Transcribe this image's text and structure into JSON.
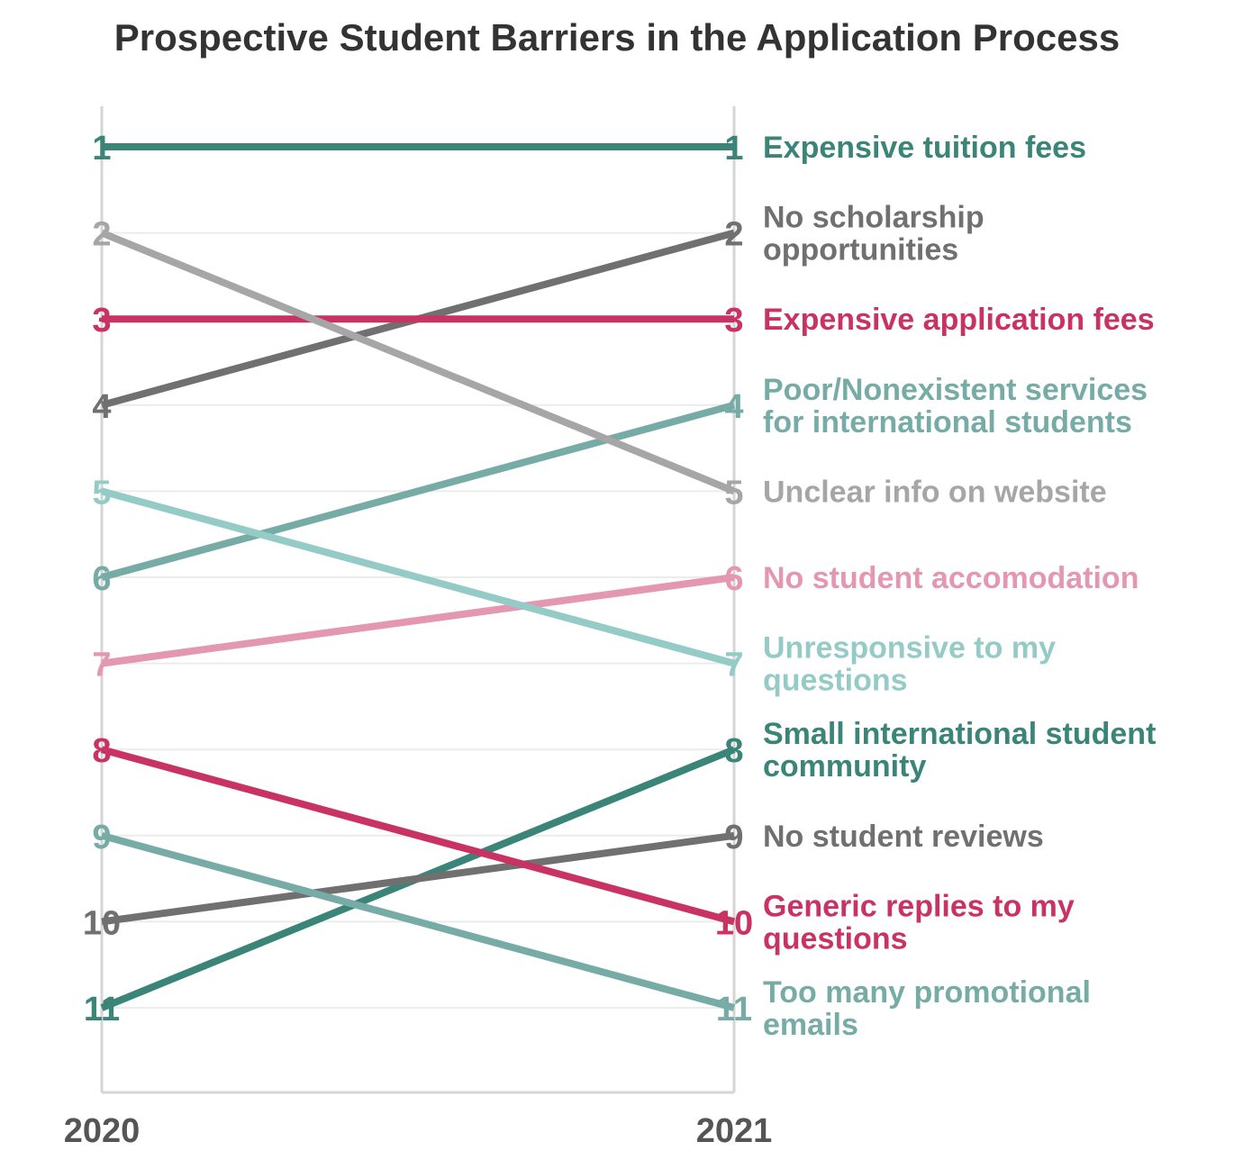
{
  "chart_data": {
    "type": "line",
    "title": "Prospective Student Barriers in the Application Process",
    "x": [
      "2020",
      "2021"
    ],
    "ylim": [
      1,
      11
    ],
    "y_reversed": true,
    "grid": true,
    "series": [
      {
        "name": "Expensive tuition fees",
        "label_lines": [
          "Expensive tuition fees"
        ],
        "values": [
          1,
          1
        ],
        "color": "#3a8478"
      },
      {
        "name": "No scholarship opportunities",
        "label_lines": [
          "No scholarship",
          "opportunities"
        ],
        "values": [
          4,
          2
        ],
        "color": "#707070"
      },
      {
        "name": "Expensive application fees",
        "label_lines": [
          "Expensive application fees"
        ],
        "values": [
          3,
          3
        ],
        "color": "#c93363"
      },
      {
        "name": "Poor/Nonexistent services for international students",
        "label_lines": [
          "Poor/Nonexistent services",
          "for international students"
        ],
        "values": [
          6,
          4
        ],
        "color": "#76aca5"
      },
      {
        "name": "Unclear info on website",
        "label_lines": [
          "Unclear info on website"
        ],
        "values": [
          2,
          5
        ],
        "color": "#a6a6a6"
      },
      {
        "name": "No student accomodation",
        "label_lines": [
          "No student accomodation"
        ],
        "values": [
          7,
          6
        ],
        "color": "#e497b0"
      },
      {
        "name": "Unresponsive to my questions",
        "label_lines": [
          "Unresponsive to my",
          "questions"
        ],
        "values": [
          5,
          7
        ],
        "color": "#94cbc7"
      },
      {
        "name": "Small international student community",
        "label_lines": [
          "Small international student",
          "community"
        ],
        "values": [
          11,
          8
        ],
        "color": "#3a8478"
      },
      {
        "name": "No student reviews",
        "label_lines": [
          "No student reviews"
        ],
        "values": [
          10,
          9
        ],
        "color": "#707070"
      },
      {
        "name": "Generic replies to my questions",
        "label_lines": [
          "Generic replies to my",
          "questions"
        ],
        "values": [
          8,
          10
        ],
        "color": "#c93363"
      },
      {
        "name": "Too many promotional emails",
        "label_lines": [
          "Too many promotional",
          "emails"
        ],
        "values": [
          9,
          11
        ],
        "color": "#76aca5"
      }
    ]
  }
}
